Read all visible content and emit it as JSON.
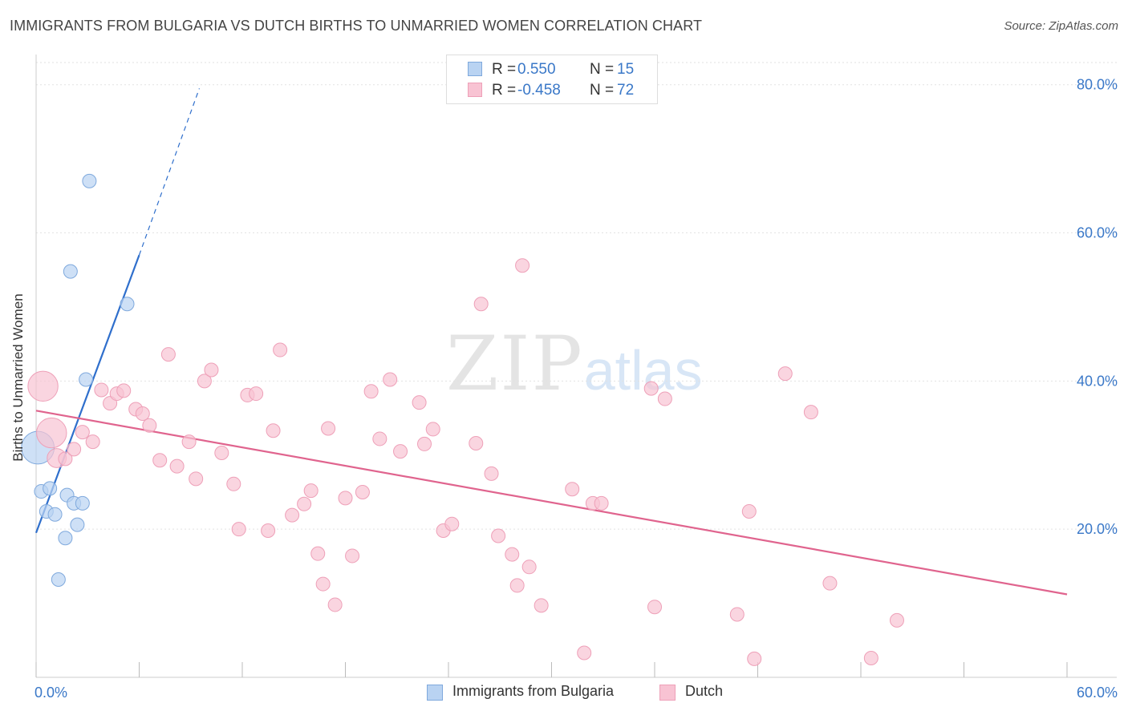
{
  "header": {
    "title": "IMMIGRANTS FROM BULGARIA VS DUTCH BIRTHS TO UNMARRIED WOMEN CORRELATION CHART",
    "source": "Source: ZipAtlas.com"
  },
  "watermark": {
    "zip": "ZIP",
    "atlas": "atlas"
  },
  "legend_top": {
    "rows": [
      {
        "r_label": "R =",
        "r_value": "0.550",
        "n_label": "N =",
        "n_value": "15"
      },
      {
        "r_label": "R =",
        "r_value": "-0.458",
        "n_label": "N =",
        "n_value": "72"
      }
    ]
  },
  "legend_bottom": {
    "items": [
      {
        "label": "Immigrants from Bulgaria"
      },
      {
        "label": "Dutch"
      }
    ]
  },
  "colors": {
    "blue_fill": "#b9d3f2",
    "blue_stroke": "#7fa9dd",
    "blue_line": "#2f6fcc",
    "pink_fill": "#f8c3d3",
    "pink_stroke": "#eea0b8",
    "pink_line": "#e0648e",
    "tick_label": "#3a78c8",
    "grid": "#e2e2e2"
  },
  "chart_data": {
    "type": "scatter",
    "title": "IMMIGRANTS FROM BULGARIA VS DUTCH BIRTHS TO UNMARRIED WOMEN CORRELATION CHART",
    "xlabel": "",
    "ylabel": "Births to Unmarried Women",
    "xlim": [
      0,
      60
    ],
    "ylim": [
      0,
      83
    ],
    "x_tick_labels": [
      "0.0%",
      "60.0%"
    ],
    "y_ticks": [
      20,
      40,
      60,
      80
    ],
    "y_tick_labels": [
      "20.0%",
      "40.0%",
      "60.0%",
      "80.0%"
    ],
    "grid": true,
    "legend_position": "top-center",
    "series": [
      {
        "name": "Immigrants from Bulgaria",
        "color": "blue",
        "points": [
          {
            "x": 0.1,
            "y": 31.0,
            "s": 2.4
          },
          {
            "x": 0.3,
            "y": 25.1,
            "s": 1
          },
          {
            "x": 0.8,
            "y": 25.5,
            "s": 1
          },
          {
            "x": 0.6,
            "y": 22.4,
            "s": 1
          },
          {
            "x": 1.1,
            "y": 22.0,
            "s": 1
          },
          {
            "x": 1.3,
            "y": 13.2,
            "s": 1
          },
          {
            "x": 1.7,
            "y": 18.8,
            "s": 1
          },
          {
            "x": 1.8,
            "y": 24.6,
            "s": 1
          },
          {
            "x": 2.2,
            "y": 23.5,
            "s": 1
          },
          {
            "x": 2.4,
            "y": 20.6,
            "s": 1
          },
          {
            "x": 2.7,
            "y": 23.5,
            "s": 1
          },
          {
            "x": 2.9,
            "y": 40.2,
            "s": 1
          },
          {
            "x": 2.0,
            "y": 54.8,
            "s": 1
          },
          {
            "x": 3.1,
            "y": 67.0,
            "s": 1
          },
          {
            "x": 5.3,
            "y": 50.4,
            "s": 1
          }
        ],
        "trend": {
          "x": [
            0.0,
            6.0
          ],
          "y": [
            19.5,
            57.0
          ],
          "dashed_to": [
            9.5,
            79.5
          ]
        }
      },
      {
        "name": "Dutch",
        "color": "pink",
        "points": [
          {
            "x": 0.4,
            "y": 39.3,
            "s": 2.2
          },
          {
            "x": 0.9,
            "y": 33.0,
            "s": 2.2
          },
          {
            "x": 1.2,
            "y": 29.6,
            "s": 1.4
          },
          {
            "x": 1.7,
            "y": 29.5,
            "s": 1
          },
          {
            "x": 2.2,
            "y": 30.8,
            "s": 1
          },
          {
            "x": 2.7,
            "y": 33.1,
            "s": 1
          },
          {
            "x": 3.3,
            "y": 31.8,
            "s": 1
          },
          {
            "x": 3.8,
            "y": 38.8,
            "s": 1
          },
          {
            "x": 4.3,
            "y": 37.0,
            "s": 1
          },
          {
            "x": 4.7,
            "y": 38.3,
            "s": 1
          },
          {
            "x": 5.1,
            "y": 38.7,
            "s": 1
          },
          {
            "x": 5.8,
            "y": 36.2,
            "s": 1
          },
          {
            "x": 6.2,
            "y": 35.6,
            "s": 1
          },
          {
            "x": 6.6,
            "y": 34.0,
            "s": 1
          },
          {
            "x": 7.2,
            "y": 29.3,
            "s": 1
          },
          {
            "x": 7.7,
            "y": 43.6,
            "s": 1
          },
          {
            "x": 8.2,
            "y": 28.5,
            "s": 1
          },
          {
            "x": 8.9,
            "y": 31.8,
            "s": 1
          },
          {
            "x": 9.3,
            "y": 26.8,
            "s": 1
          },
          {
            "x": 9.8,
            "y": 40.0,
            "s": 1
          },
          {
            "x": 10.2,
            "y": 41.5,
            "s": 1
          },
          {
            "x": 10.8,
            "y": 30.3,
            "s": 1
          },
          {
            "x": 11.5,
            "y": 26.1,
            "s": 1
          },
          {
            "x": 11.8,
            "y": 20.0,
            "s": 1
          },
          {
            "x": 12.3,
            "y": 38.1,
            "s": 1
          },
          {
            "x": 12.8,
            "y": 38.3,
            "s": 1
          },
          {
            "x": 13.5,
            "y": 19.8,
            "s": 1
          },
          {
            "x": 13.8,
            "y": 33.3,
            "s": 1
          },
          {
            "x": 14.2,
            "y": 44.2,
            "s": 1
          },
          {
            "x": 14.9,
            "y": 21.9,
            "s": 1
          },
          {
            "x": 15.6,
            "y": 23.4,
            "s": 1
          },
          {
            "x": 16.0,
            "y": 25.2,
            "s": 1
          },
          {
            "x": 16.4,
            "y": 16.7,
            "s": 1
          },
          {
            "x": 16.7,
            "y": 12.6,
            "s": 1
          },
          {
            "x": 17.0,
            "y": 33.6,
            "s": 1
          },
          {
            "x": 17.4,
            "y": 9.8,
            "s": 1
          },
          {
            "x": 18.0,
            "y": 24.2,
            "s": 1
          },
          {
            "x": 18.4,
            "y": 16.4,
            "s": 1
          },
          {
            "x": 19.0,
            "y": 25.0,
            "s": 1
          },
          {
            "x": 19.5,
            "y": 38.6,
            "s": 1
          },
          {
            "x": 20.0,
            "y": 32.2,
            "s": 1
          },
          {
            "x": 20.6,
            "y": 40.2,
            "s": 1
          },
          {
            "x": 21.2,
            "y": 30.5,
            "s": 1
          },
          {
            "x": 22.3,
            "y": 37.1,
            "s": 1
          },
          {
            "x": 22.6,
            "y": 31.5,
            "s": 1
          },
          {
            "x": 23.1,
            "y": 33.5,
            "s": 1
          },
          {
            "x": 23.7,
            "y": 19.8,
            "s": 1
          },
          {
            "x": 24.2,
            "y": 20.7,
            "s": 1
          },
          {
            "x": 25.6,
            "y": 31.6,
            "s": 1
          },
          {
            "x": 25.9,
            "y": 50.4,
            "s": 1
          },
          {
            "x": 26.5,
            "y": 27.5,
            "s": 1
          },
          {
            "x": 26.9,
            "y": 19.1,
            "s": 1
          },
          {
            "x": 27.7,
            "y": 16.6,
            "s": 1
          },
          {
            "x": 28.0,
            "y": 12.4,
            "s": 1
          },
          {
            "x": 28.3,
            "y": 55.6,
            "s": 1
          },
          {
            "x": 28.7,
            "y": 14.9,
            "s": 1
          },
          {
            "x": 29.4,
            "y": 9.7,
            "s": 1
          },
          {
            "x": 31.2,
            "y": 25.4,
            "s": 1
          },
          {
            "x": 31.9,
            "y": 3.3,
            "s": 1
          },
          {
            "x": 32.4,
            "y": 23.5,
            "s": 1
          },
          {
            "x": 32.9,
            "y": 23.5,
            "s": 1
          },
          {
            "x": 35.8,
            "y": 39.0,
            "s": 1
          },
          {
            "x": 36.0,
            "y": 9.5,
            "s": 1
          },
          {
            "x": 36.6,
            "y": 37.6,
            "s": 1
          },
          {
            "x": 40.8,
            "y": 8.5,
            "s": 1
          },
          {
            "x": 41.5,
            "y": 22.4,
            "s": 1
          },
          {
            "x": 41.8,
            "y": 2.5,
            "s": 1
          },
          {
            "x": 43.6,
            "y": 41.0,
            "s": 1
          },
          {
            "x": 45.1,
            "y": 35.8,
            "s": 1
          },
          {
            "x": 46.2,
            "y": 12.7,
            "s": 1
          },
          {
            "x": 48.6,
            "y": 2.6,
            "s": 1
          },
          {
            "x": 50.1,
            "y": 7.7,
            "s": 1
          }
        ],
        "trend": {
          "x": [
            0.0,
            60.0
          ],
          "y": [
            36.0,
            11.2
          ]
        }
      }
    ]
  }
}
